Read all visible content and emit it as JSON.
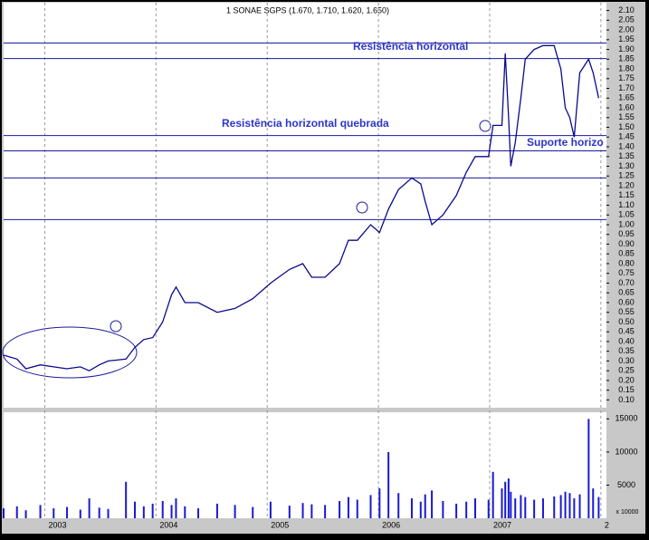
{
  "chart_data": {
    "type": "line",
    "title": "1 SONAE SGPS (1.670, 1.710, 1.620, 1.650)",
    "x": [
      2002.63,
      2002.75,
      2002.83,
      2002.96,
      2003.08,
      2003.2,
      2003.32,
      2003.4,
      2003.49,
      2003.57,
      2003.73,
      2003.81,
      2003.89,
      2003.97,
      2004.06,
      2004.14,
      2004.18,
      2004.26,
      2004.38,
      2004.55,
      2004.71,
      2004.87,
      2005.03,
      2005.2,
      2005.32,
      2005.4,
      2005.52,
      2005.65,
      2005.73,
      2005.81,
      2005.93,
      2006.01,
      2006.09,
      2006.18,
      2006.3,
      2006.38,
      2006.42,
      2006.48,
      2006.58,
      2006.7,
      2006.79,
      2006.87,
      2006.99,
      2007.03,
      2007.11,
      2007.14,
      2007.17,
      2007.19,
      2007.23,
      2007.28,
      2007.32,
      2007.4,
      2007.48,
      2007.58,
      2007.64,
      2007.68,
      2007.72,
      2007.76,
      2007.81,
      2007.89,
      2007.93,
      2007.98
    ],
    "series": [
      {
        "color": "#0a0a8c",
        "values": [
          0.33,
          0.31,
          0.26,
          0.28,
          0.27,
          0.26,
          0.27,
          0.25,
          0.28,
          0.3,
          0.31,
          0.37,
          0.41,
          0.42,
          0.5,
          0.64,
          0.68,
          0.6,
          0.6,
          0.55,
          0.57,
          0.62,
          0.7,
          0.77,
          0.8,
          0.73,
          0.73,
          0.8,
          0.92,
          0.92,
          1.0,
          0.96,
          1.08,
          1.18,
          1.24,
          1.21,
          1.12,
          1.0,
          1.05,
          1.15,
          1.27,
          1.35,
          1.35,
          1.51,
          1.51,
          1.88,
          1.55,
          1.3,
          1.42,
          1.65,
          1.85,
          1.9,
          1.92,
          1.92,
          1.8,
          1.6,
          1.55,
          1.45,
          1.78,
          1.85,
          1.78,
          1.65
        ]
      }
    ],
    "volume": {
      "type": "bar",
      "color": "#1a1ad0",
      "label": "x 10000",
      "values": [
        1500,
        1800,
        1200,
        2000,
        1500,
        1700,
        1300,
        3000,
        1600,
        1400,
        5500,
        2500,
        1800,
        2200,
        2600,
        2000,
        3000,
        1800,
        1500,
        2200,
        2000,
        1700,
        2500,
        1900,
        2300,
        2100,
        2000,
        2600,
        3200,
        2800,
        3500,
        4500,
        10000,
        3800,
        3000,
        2500,
        3600,
        4200,
        2600,
        2200,
        2500,
        3000,
        2800,
        7000,
        4500,
        5500,
        6000,
        4000,
        3000,
        3500,
        3200,
        2800,
        3000,
        3300,
        3500,
        4000,
        3800,
        3000,
        3600,
        15000,
        4500,
        3200
      ],
      "ylim": [
        0,
        16000
      ],
      "yticks": [
        5000,
        10000,
        15000
      ]
    },
    "xlim": [
      2002.63,
      2008.05
    ],
    "xticks": [
      2003,
      2004,
      2005,
      2006,
      2007,
      {
        "value": 2008,
        "label": "2"
      }
    ],
    "ylim": [
      0.06,
      2.14
    ],
    "yticks": [
      {
        "value": 0.1,
        "label": "0.10"
      },
      0.15,
      {
        "value": 0.2,
        "label": "0.20"
      },
      0.25,
      {
        "value": 0.3,
        "label": "0.30"
      },
      0.35,
      {
        "value": 0.4,
        "label": "0.40"
      },
      0.45,
      {
        "value": 0.5,
        "label": "0.50"
      },
      0.55,
      {
        "value": 0.6,
        "label": "0.60"
      },
      0.65,
      {
        "value": 0.7,
        "label": "0.70"
      },
      0.75,
      {
        "value": 0.8,
        "label": "0.80"
      },
      0.85,
      {
        "value": 0.9,
        "label": "0.90"
      },
      0.95,
      {
        "value": 1.0,
        "label": "1.00"
      },
      1.05,
      {
        "value": 1.1,
        "label": "1.10"
      },
      1.15,
      {
        "value": 1.2,
        "label": "1.20"
      },
      1.25,
      {
        "value": 1.3,
        "label": "1.30"
      },
      1.35,
      {
        "value": 1.4,
        "label": "1.40"
      },
      1.45,
      {
        "value": 1.5,
        "label": "1.50"
      },
      1.55,
      {
        "value": 1.6,
        "label": "1.60"
      },
      1.65,
      {
        "value": 1.7,
        "label": "1.70"
      },
      1.75,
      {
        "value": 1.8,
        "label": "1.80"
      },
      1.85,
      {
        "value": 1.9,
        "label": "1.90"
      },
      1.95,
      {
        "value": 2.0,
        "label": "2.00"
      },
      2.05,
      {
        "value": 2.1,
        "label": "2.10"
      }
    ],
    "grid": true,
    "levels": {
      "color": "#1a1aa0",
      "values": [
        1.933,
        1.853,
        1.458,
        1.379,
        1.24,
        1.026
      ]
    },
    "annotations": [
      "Resistência horizontal",
      "Resistência horizontal quebrada",
      "Suporte horizo"
    ]
  }
}
